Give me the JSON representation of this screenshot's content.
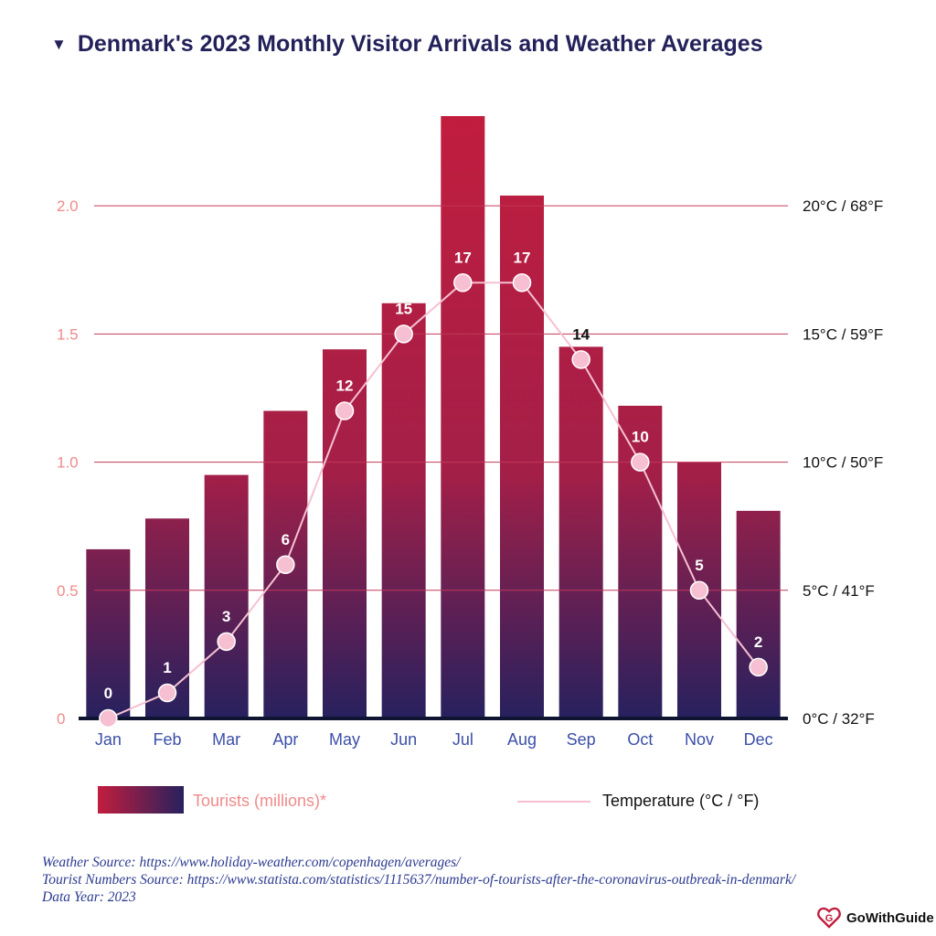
{
  "title": "Denmark's 2023 Monthly Visitor Arrivals and Weather Averages",
  "title_icon": "triangle-down-icon",
  "chart_data": {
    "type": "bar",
    "categories": [
      "Jan",
      "Feb",
      "Mar",
      "Apr",
      "May",
      "Jun",
      "Jul",
      "Aug",
      "Sep",
      "Oct",
      "Nov",
      "Dec"
    ],
    "series": [
      {
        "name": "Tourists (millions)*",
        "type": "bar",
        "axis": "left",
        "values": [
          0.66,
          0.78,
          0.95,
          1.2,
          1.44,
          1.62,
          2.35,
          2.04,
          1.45,
          1.22,
          1.0,
          0.81
        ]
      },
      {
        "name": "Temperature (°C / °F)",
        "type": "line",
        "axis": "right",
        "values": [
          0,
          1,
          3,
          6,
          12,
          15,
          17,
          17,
          14,
          10,
          5,
          2
        ]
      }
    ],
    "left_axis": {
      "ticks": [
        "0",
        "0.5",
        "1.0",
        "1.5",
        "2.0"
      ],
      "tick_values": [
        0,
        0.5,
        1.0,
        1.5,
        2.0
      ],
      "range": [
        0,
        2.4
      ]
    },
    "right_axis": {
      "ticks": [
        "0°C / 32°F",
        "5°C / 41°F",
        "10°C / 50°F",
        "15°C / 59°F",
        "20°C / 68°F"
      ],
      "tick_values": [
        0,
        5,
        10,
        15,
        20
      ],
      "range": [
        0,
        24
      ]
    },
    "colors": {
      "bar_top": "#c21d3e",
      "bar_bottom": "#27215e",
      "line": "#f6c0d2",
      "grid": "#c0395a",
      "left_tick": "#f08a8a",
      "right_tick": "#111111",
      "month_label": "#3b4fa8",
      "axis": "#0f1530"
    }
  },
  "legend": {
    "tourists_label": "Tourists (millions)*",
    "temperature_label": "Temperature (°C / °F)"
  },
  "sources": {
    "weather": "Weather Source: https://www.holiday-weather.com/copenhagen/averages/",
    "tourists": "Tourist Numbers Source: https://www.statista.com/statistics/1115637/number-of-tourists-after-the-coronavirus-outbreak-in-denmark/",
    "year": "Data Year: 2023"
  },
  "brand": {
    "name": "GoWithGuide",
    "icon": "gowithguide-logo-icon"
  }
}
